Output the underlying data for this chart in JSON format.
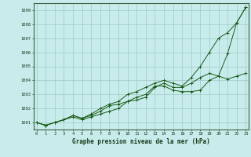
{
  "xlabel": "Graphe pression niveau de la mer (hPa)",
  "ylim": [
    1000.5,
    1009.5
  ],
  "xlim": [
    -0.3,
    23.3
  ],
  "yticks": [
    1001,
    1002,
    1003,
    1004,
    1005,
    1006,
    1007,
    1008,
    1009
  ],
  "xticks": [
    0,
    1,
    2,
    3,
    4,
    5,
    6,
    7,
    8,
    9,
    10,
    11,
    12,
    13,
    14,
    15,
    16,
    17,
    18,
    19,
    20,
    21,
    22,
    23
  ],
  "background_color": "#c8ecec",
  "grid_color": "#a0c8c8",
  "line_color": "#1a5c1a",
  "series": [
    [
      1001.0,
      1000.8,
      1001.0,
      1001.2,
      1001.4,
      1001.2,
      1001.4,
      1001.6,
      1001.8,
      1002.0,
      1002.5,
      1002.8,
      1003.0,
      1003.6,
      1003.6,
      1003.3,
      1003.2,
      1003.2,
      1003.3,
      1004.0,
      1004.3,
      1005.9,
      1008.1,
      1009.2
    ],
    [
      1001.0,
      1000.8,
      1001.0,
      1001.2,
      1001.5,
      1001.3,
      1001.5,
      1001.8,
      1002.2,
      1002.3,
      1002.5,
      1002.6,
      1002.8,
      1003.5,
      1003.8,
      1003.5,
      1003.5,
      1003.8,
      1004.2,
      1004.5,
      1004.3,
      1004.1,
      1004.3,
      1004.5
    ],
    [
      1001.0,
      1000.8,
      1001.0,
      1001.2,
      1001.5,
      1001.3,
      1001.6,
      1002.0,
      1002.3,
      1002.5,
      1003.0,
      1003.2,
      1003.5,
      1003.8,
      1004.0,
      1003.8,
      1003.6,
      1004.2,
      1005.0,
      1006.0,
      1007.0,
      1007.4,
      1008.1,
      1009.2
    ]
  ]
}
